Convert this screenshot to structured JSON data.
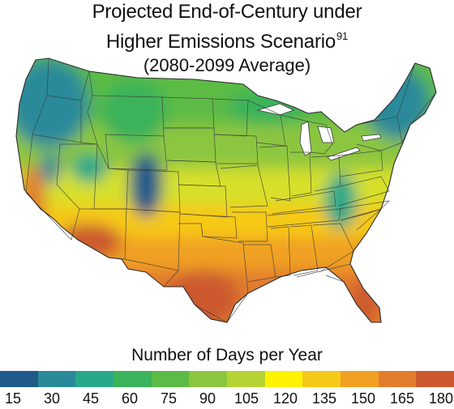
{
  "title": {
    "line1": "Projected End-of-Century under",
    "line2": "Higher Emissions Scenario",
    "line2_superscript": "91",
    "line3": "(2080-2099 Average)"
  },
  "legend": {
    "title": "Number of Days per Year",
    "ticks": [
      "15",
      "30",
      "45",
      "60",
      "75",
      "90",
      "105",
      "120",
      "135",
      "150",
      "165",
      "180"
    ],
    "colors": [
      "#1f5a8a",
      "#2a8a9a",
      "#2aa98a",
      "#3ab35a",
      "#5bbb44",
      "#8cc63f",
      "#b5d334",
      "#fff200",
      "#f6c918",
      "#f0a022",
      "#e27d2e",
      "#cc5a2f"
    ]
  },
  "map": {
    "region": "Contiguous United States",
    "border_color": "#3a3a3a"
  }
}
